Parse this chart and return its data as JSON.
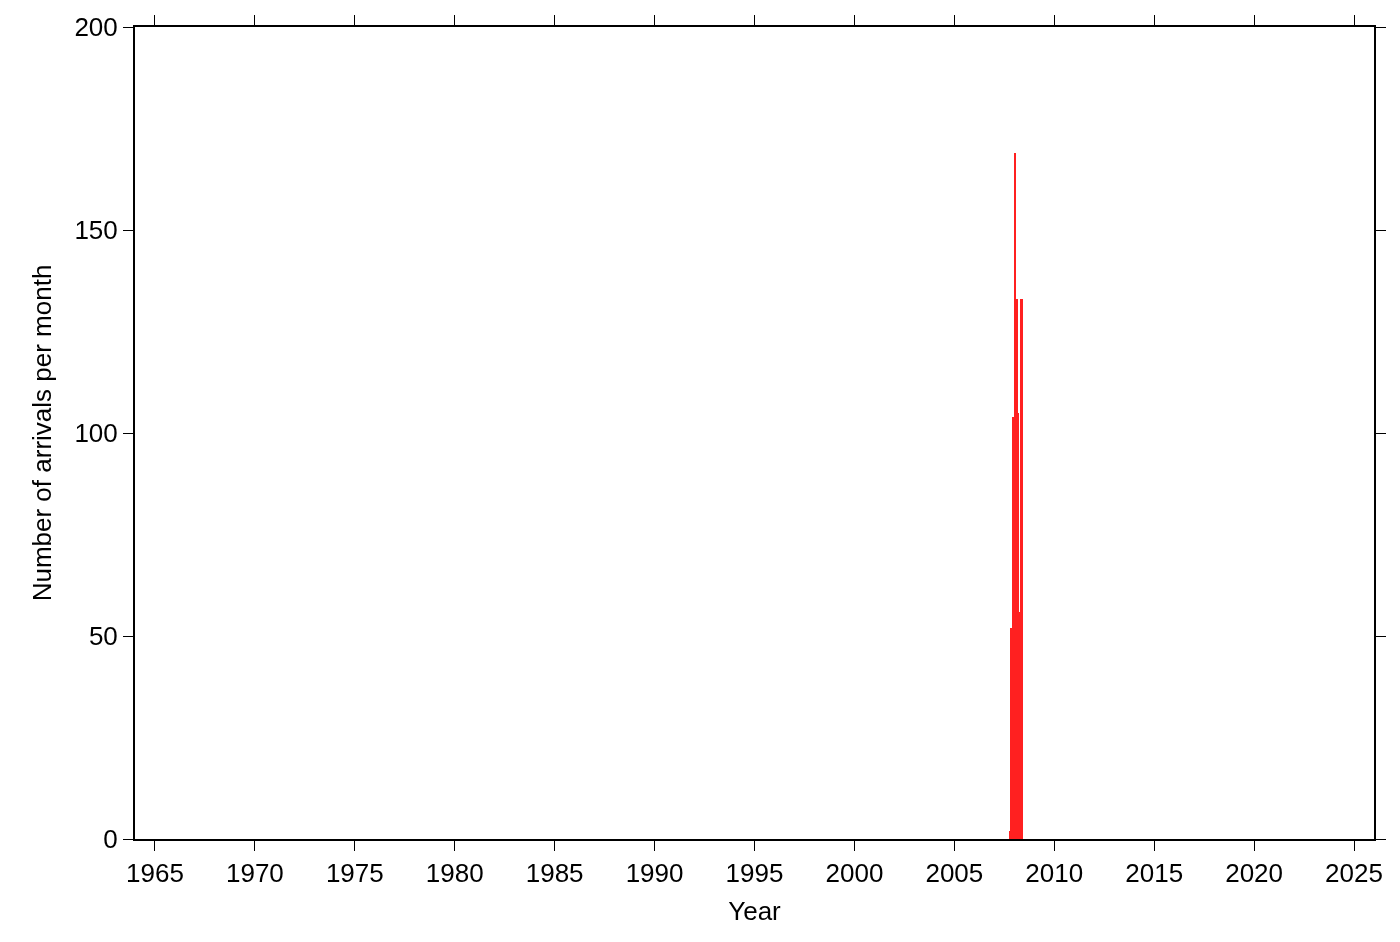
{
  "chart_data": {
    "type": "histogram",
    "xlabel": "Year",
    "ylabel": "Number of arrivals per month",
    "bins": [
      2007.75,
      2007.833,
      2007.917,
      2008.0,
      2008.083,
      2008.167,
      2008.25,
      2008.333,
      2008.417
    ],
    "values": [
      2,
      52,
      104,
      169,
      133,
      105,
      56,
      133
    ],
    "color": "#ff2020",
    "xlim": [
      1964,
      2026
    ],
    "xticks": [
      1965,
      1970,
      1975,
      1980,
      1985,
      1990,
      1995,
      2000,
      2005,
      2010,
      2015,
      2020,
      2025
    ],
    "ylim": [
      0,
      200
    ],
    "yticks": [
      0,
      50,
      100,
      150,
      200
    ]
  }
}
